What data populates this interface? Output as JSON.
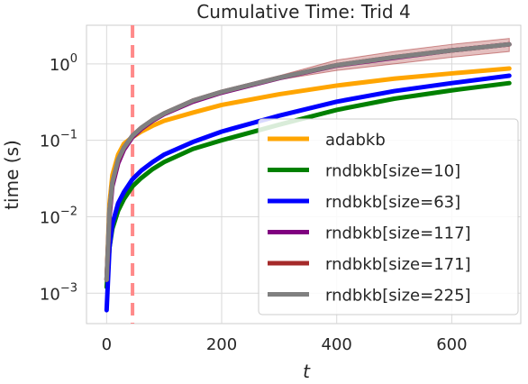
{
  "chart_data": {
    "type": "line",
    "title": "Cumulative Time: Trid 4",
    "xlabel": "t",
    "ylabel": "time (s)",
    "xlim": [
      -35,
      720
    ],
    "ylim": [
      0.0004,
      3.2
    ],
    "yscale": "log",
    "xticks": [
      0,
      200,
      400,
      600
    ],
    "xtick_labels": [
      "0",
      "200",
      "400",
      "600"
    ],
    "yticks": [
      0.001,
      0.01,
      0.1,
      1
    ],
    "grid": true,
    "legend_position": "lower-right",
    "vline": {
      "x": 45,
      "color": "#ff8a8a",
      "style": "dashed"
    },
    "series": [
      {
        "name": "adabkb",
        "color": "#ffa500",
        "x": [
          0,
          5,
          10,
          20,
          30,
          45,
          60,
          80,
          100,
          150,
          200,
          300,
          400,
          500,
          600,
          700
        ],
        "y": [
          0.0015,
          0.015,
          0.035,
          0.065,
          0.09,
          0.11,
          0.13,
          0.155,
          0.18,
          0.23,
          0.29,
          0.4,
          0.52,
          0.64,
          0.75,
          0.87
        ]
      },
      {
        "name": "rndbkb[size=10]",
        "color": "#008000",
        "x": [
          0,
          5,
          10,
          20,
          30,
          45,
          60,
          80,
          100,
          150,
          200,
          300,
          400,
          500,
          600,
          700
        ],
        "y": [
          0.0012,
          0.004,
          0.007,
          0.012,
          0.017,
          0.025,
          0.032,
          0.042,
          0.052,
          0.077,
          0.1,
          0.16,
          0.25,
          0.35,
          0.45,
          0.56
        ]
      },
      {
        "name": "rndbkb[size=63]",
        "color": "#0000ff",
        "x": [
          0,
          5,
          10,
          20,
          30,
          45,
          60,
          80,
          100,
          150,
          200,
          300,
          400,
          500,
          600,
          700
        ],
        "y": [
          0.0006,
          0.004,
          0.008,
          0.015,
          0.021,
          0.031,
          0.04,
          0.052,
          0.065,
          0.095,
          0.13,
          0.21,
          0.32,
          0.44,
          0.56,
          0.7
        ]
      },
      {
        "name": "rndbkb[size=117]",
        "color": "#800080",
        "x": [
          0,
          5,
          10,
          20,
          30,
          45,
          60,
          80,
          100,
          150,
          200,
          300,
          400,
          500,
          600,
          700
        ],
        "y": [
          0.0015,
          0.01,
          0.025,
          0.05,
          0.075,
          0.11,
          0.14,
          0.18,
          0.22,
          0.32,
          0.42,
          0.65,
          0.95,
          1.2,
          1.5,
          1.8
        ]
      },
      {
        "name": "rndbkb[size=171]",
        "color": "#a52a2a",
        "x": [
          0,
          5,
          10,
          20,
          30,
          45,
          60,
          80,
          100,
          150,
          200,
          300,
          400,
          500,
          600,
          700
        ],
        "y": [
          0.0015,
          0.012,
          0.028,
          0.055,
          0.08,
          0.115,
          0.145,
          0.185,
          0.225,
          0.33,
          0.43,
          0.66,
          0.96,
          1.22,
          1.5,
          1.8
        ],
        "band_lower": [
          0.0014,
          0.011,
          0.026,
          0.052,
          0.076,
          0.11,
          0.138,
          0.175,
          0.214,
          0.31,
          0.41,
          0.62,
          0.82,
          1.0,
          1.22,
          1.45
        ],
        "band_upper": [
          0.0016,
          0.013,
          0.03,
          0.058,
          0.084,
          0.12,
          0.152,
          0.195,
          0.236,
          0.35,
          0.45,
          0.7,
          1.12,
          1.45,
          1.8,
          2.15
        ]
      },
      {
        "name": "rndbkb[size=225]",
        "color": "#808080",
        "x": [
          0,
          5,
          10,
          20,
          30,
          45,
          60,
          80,
          100,
          150,
          200,
          300,
          400,
          500,
          600,
          700
        ],
        "y": [
          0.0015,
          0.012,
          0.028,
          0.056,
          0.08,
          0.115,
          0.145,
          0.185,
          0.225,
          0.33,
          0.43,
          0.66,
          0.96,
          1.22,
          1.5,
          1.8
        ]
      }
    ]
  }
}
